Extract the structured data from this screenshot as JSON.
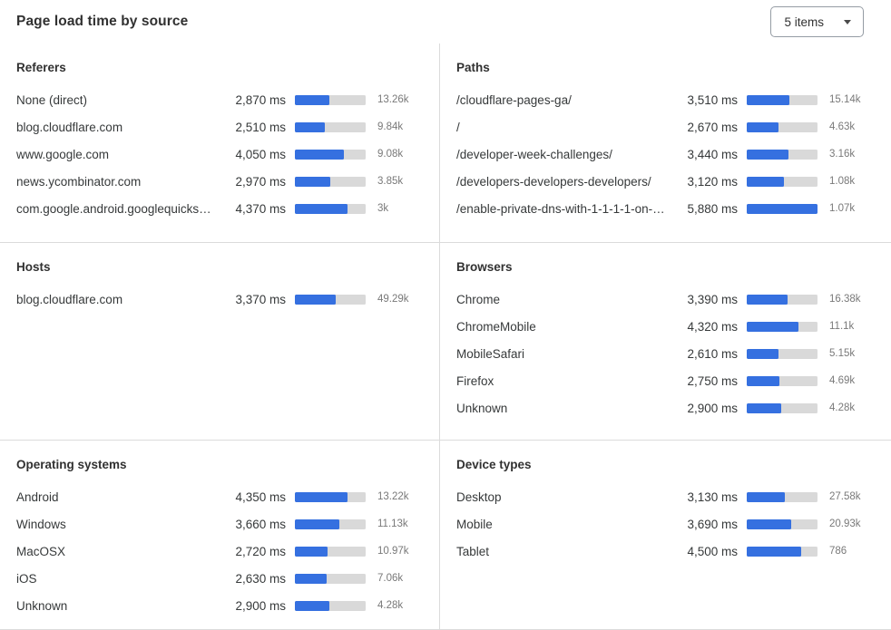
{
  "header": {
    "title": "Page load time by source",
    "items_dropdown": {
      "value": "5 items"
    }
  },
  "colors": {
    "bar_fill": "#3570e0",
    "bar_track": "#d9d9d9"
  },
  "scale_max_ms": 5880,
  "chart_data": [
    {
      "type": "bar",
      "title": "Referers",
      "value_unit": "ms",
      "xlim_ms": [
        0,
        5880
      ],
      "rows": [
        {
          "label": "None (direct)",
          "ms": 2870,
          "ms_label": "2,870 ms",
          "count": "13.26k"
        },
        {
          "label": "blog.cloudflare.com",
          "ms": 2510,
          "ms_label": "2,510 ms",
          "count": "9.84k"
        },
        {
          "label": "www.google.com",
          "ms": 4050,
          "ms_label": "4,050 ms",
          "count": "9.08k"
        },
        {
          "label": "news.ycombinator.com",
          "ms": 2970,
          "ms_label": "2,970 ms",
          "count": "3.85k"
        },
        {
          "label": "com.google.android.googlequicksearc…",
          "ms": 4370,
          "ms_label": "4,370 ms",
          "count": "3k"
        }
      ]
    },
    {
      "type": "bar",
      "title": "Paths",
      "value_unit": "ms",
      "xlim_ms": [
        0,
        5880
      ],
      "rows": [
        {
          "label": "/cloudflare-pages-ga/",
          "ms": 3510,
          "ms_label": "3,510 ms",
          "count": "15.14k"
        },
        {
          "label": "/",
          "ms": 2670,
          "ms_label": "2,670 ms",
          "count": "4.63k"
        },
        {
          "label": "/developer-week-challenges/",
          "ms": 3440,
          "ms_label": "3,440 ms",
          "count": "3.16k"
        },
        {
          "label": "/developers-developers-developers/",
          "ms": 3120,
          "ms_label": "3,120 ms",
          "count": "1.08k"
        },
        {
          "label": "/enable-private-dns-with-1-1-1-1-on-…",
          "ms": 5880,
          "ms_label": "5,880 ms",
          "count": "1.07k"
        }
      ]
    },
    {
      "type": "bar",
      "title": "Hosts",
      "value_unit": "ms",
      "xlim_ms": [
        0,
        5880
      ],
      "rows": [
        {
          "label": "blog.cloudflare.com",
          "ms": 3370,
          "ms_label": "3,370 ms",
          "count": "49.29k"
        }
      ]
    },
    {
      "type": "bar",
      "title": "Browsers",
      "value_unit": "ms",
      "xlim_ms": [
        0,
        5880
      ],
      "rows": [
        {
          "label": "Chrome",
          "ms": 3390,
          "ms_label": "3,390 ms",
          "count": "16.38k"
        },
        {
          "label": "ChromeMobile",
          "ms": 4320,
          "ms_label": "4,320 ms",
          "count": "11.1k"
        },
        {
          "label": "MobileSafari",
          "ms": 2610,
          "ms_label": "2,610 ms",
          "count": "5.15k"
        },
        {
          "label": "Firefox",
          "ms": 2750,
          "ms_label": "2,750 ms",
          "count": "4.69k"
        },
        {
          "label": "Unknown",
          "ms": 2900,
          "ms_label": "2,900 ms",
          "count": "4.28k"
        }
      ]
    },
    {
      "type": "bar",
      "title": "Operating systems",
      "value_unit": "ms",
      "xlim_ms": [
        0,
        5880
      ],
      "rows": [
        {
          "label": "Android",
          "ms": 4350,
          "ms_label": "4,350 ms",
          "count": "13.22k"
        },
        {
          "label": "Windows",
          "ms": 3660,
          "ms_label": "3,660 ms",
          "count": "11.13k"
        },
        {
          "label": "MacOSX",
          "ms": 2720,
          "ms_label": "2,720 ms",
          "count": "10.97k"
        },
        {
          "label": "iOS",
          "ms": 2630,
          "ms_label": "2,630 ms",
          "count": "7.06k"
        },
        {
          "label": "Unknown",
          "ms": 2900,
          "ms_label": "2,900 ms",
          "count": "4.28k"
        }
      ]
    },
    {
      "type": "bar",
      "title": "Device types",
      "value_unit": "ms",
      "xlim_ms": [
        0,
        5880
      ],
      "rows": [
        {
          "label": "Desktop",
          "ms": 3130,
          "ms_label": "3,130 ms",
          "count": "27.58k"
        },
        {
          "label": "Mobile",
          "ms": 3690,
          "ms_label": "3,690 ms",
          "count": "20.93k"
        },
        {
          "label": "Tablet",
          "ms": 4500,
          "ms_label": "4,500 ms",
          "count": "786"
        }
      ]
    }
  ]
}
